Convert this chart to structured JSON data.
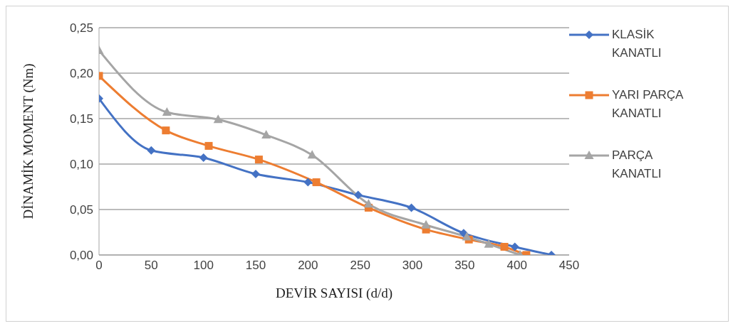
{
  "chart_data": {
    "type": "line",
    "xlabel": "DEVİR SAYISI  (d/d)",
    "ylabel": "DİNAMİK  MOMENT (Nm)",
    "xlim": [
      0,
      450
    ],
    "xticks": [
      0,
      50,
      100,
      150,
      200,
      250,
      300,
      350,
      400,
      450
    ],
    "ylim": [
      0,
      0.25
    ],
    "yticks": [
      {
        "value": 0,
        "label": "0,00"
      },
      {
        "value": 0.05,
        "label": "0,05"
      },
      {
        "value": 0.1,
        "label": "0,10"
      },
      {
        "value": 0.15,
        "label": "0,15"
      },
      {
        "value": 0.2,
        "label": "0,20"
      },
      {
        "value": 0.25,
        "label": "0,25"
      }
    ],
    "grid": "y",
    "legend": "right",
    "series": [
      {
        "name": "KLASİK KANATLI",
        "color": "#4472c4",
        "marker": "diamond",
        "x": [
          0,
          50,
          100,
          150,
          200,
          248,
          299,
          349,
          398,
          433
        ],
        "values": [
          0.172,
          0.115,
          0.107,
          0.089,
          0.08,
          0.066,
          0.052,
          0.024,
          0.009,
          0
        ]
      },
      {
        "name": "YARI PARÇA KANATLI",
        "color": "#ed7d31",
        "marker": "square",
        "x": [
          0,
          64,
          105,
          153,
          208,
          258,
          313,
          354,
          388,
          409
        ],
        "values": [
          0.197,
          0.137,
          0.12,
          0.105,
          0.08,
          0.052,
          0.028,
          0.017,
          0.009,
          0
        ]
      },
      {
        "name": "PARÇA KANATLI",
        "color": "#a5a5a5",
        "marker": "triangle",
        "x": [
          0,
          65,
          114,
          160,
          204,
          258,
          313,
          352,
          373,
          403
        ],
        "values": [
          0.225,
          0.157,
          0.149,
          0.132,
          0.11,
          0.056,
          0.033,
          0.02,
          0.012,
          0
        ]
      }
    ]
  }
}
